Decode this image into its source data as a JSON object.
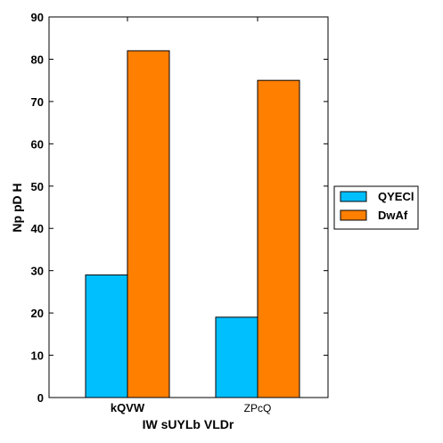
{
  "chart_data": {
    "type": "bar",
    "categories": [
      "kQVW",
      "ZPcQ"
    ],
    "series": [
      {
        "name": "QYECl",
        "values": [
          29,
          19
        ],
        "color": "#00bfff"
      },
      {
        "name": "DwAf",
        "values": [
          82,
          75
        ],
        "color": "#ff7f00"
      }
    ],
    "title": "",
    "xlabel": "IW sUYLb VLDr",
    "ylabel": "Np pD H",
    "ylim": [
      0,
      90
    ],
    "yticks": [
      0,
      10,
      20,
      30,
      40,
      50,
      60,
      70,
      80,
      90
    ],
    "grid": false,
    "legend_position": "right-outside"
  }
}
